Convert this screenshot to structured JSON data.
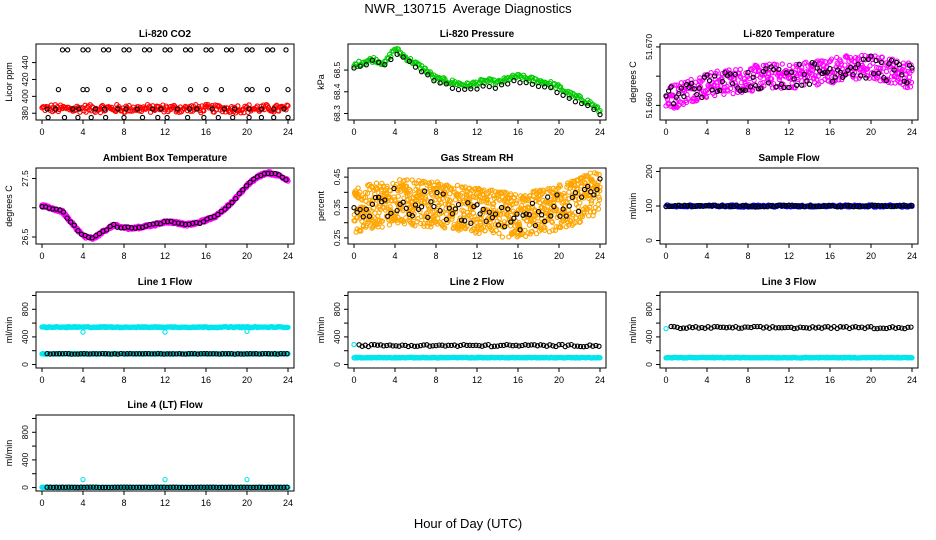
{
  "title": "NWR_130715  Average Diagnostics",
  "xlabel": "Hour of Day (UTC)",
  "x_ticks": [
    0,
    4,
    8,
    12,
    16,
    20,
    24
  ],
  "chart_data": [
    {
      "type": "scatter",
      "title": "Li-820 CO2",
      "ylabel": "Licor ppm",
      "xlim": [
        0,
        24
      ],
      "ylim": [
        372,
        462
      ],
      "yticks": [
        380,
        400,
        420,
        440
      ],
      "series": [
        {
          "color": "#ff0000",
          "points": "band",
          "x": [
            0,
            24
          ],
          "y": [
            381,
            390
          ],
          "step": 0.1,
          "jitter": 2
        },
        {
          "color": "#000000",
          "points": "list",
          "x": [
            2,
            2.5,
            4,
            4.5,
            6,
            6.5,
            8,
            8.5,
            10,
            10.5,
            12,
            12.5,
            14,
            14.5,
            16,
            16.5,
            18,
            18.5,
            20,
            20.5,
            22,
            22.5,
            23.8
          ],
          "y": [
            455,
            455,
            455,
            455,
            455,
            455,
            455,
            455,
            455,
            455,
            455,
            455,
            455,
            455,
            455,
            455,
            455,
            455,
            455,
            455,
            455,
            455,
            455
          ]
        },
        {
          "color": "#000000",
          "points": "list",
          "x": [
            1.6,
            4,
            4.4,
            6.5,
            8,
            9.5,
            10.5,
            12,
            14.5,
            16,
            17.5,
            20,
            20.5,
            22,
            24
          ],
          "y": [
            408,
            408,
            408,
            408,
            408,
            408,
            408,
            408,
            408,
            408,
            408,
            408,
            408,
            408,
            408
          ]
        },
        {
          "color": "#000000",
          "points": "list",
          "x": [
            0.5,
            1.3,
            3,
            3.6,
            5.2,
            6.1,
            7.4,
            8.2,
            9.3,
            10.8,
            11.6,
            13.2,
            14.4,
            15.1,
            16.6,
            17.8,
            18.8,
            20.2,
            21.4,
            22.6,
            23.6
          ],
          "y": [
            385,
            385,
            385,
            385,
            385,
            385,
            385,
            385,
            385,
            385,
            385,
            385,
            385,
            385,
            385,
            385,
            385,
            385,
            385,
            385,
            385
          ]
        },
        {
          "color": "#000000",
          "points": "list",
          "x": [
            0.6,
            2.2,
            3.5,
            4.8,
            6.2,
            8,
            9.8,
            11.3,
            12.2,
            14.2,
            15.8,
            17.2,
            18.6,
            20.2,
            21.4,
            22.6,
            24
          ],
          "y": [
            375,
            375,
            375,
            375,
            375,
            375,
            375,
            375,
            375,
            375,
            375,
            375,
            375,
            375,
            375,
            375,
            375
          ]
        }
      ]
    },
    {
      "type": "scatter",
      "title": "Li-820 Pressure",
      "ylabel": "kPa",
      "xlim": [
        0,
        24
      ],
      "ylim": [
        68.27,
        68.62
      ],
      "yticks": [
        68.3,
        68.4,
        68.5
      ],
      "series": [
        {
          "color": "#00cc00",
          "points": "curve",
          "step": 0.12,
          "jitter": 0.012,
          "x": [
            0,
            1,
            2,
            3,
            4,
            5,
            6,
            7,
            8,
            9,
            10,
            11,
            12,
            13,
            14,
            15,
            16,
            17,
            18,
            19,
            20,
            21,
            22,
            23,
            24
          ],
          "y": [
            68.52,
            68.54,
            68.55,
            68.53,
            68.6,
            68.56,
            68.53,
            68.5,
            68.46,
            68.45,
            68.44,
            68.43,
            68.44,
            68.45,
            68.44,
            68.46,
            68.47,
            68.46,
            68.45,
            68.44,
            68.42,
            68.39,
            68.37,
            68.35,
            68.31
          ]
        },
        {
          "color": "#000000",
          "points": "curve",
          "step": 0.6,
          "jitter": 0.008,
          "x": [
            0,
            1,
            2,
            3,
            4,
            5,
            6,
            7,
            8,
            9,
            10,
            11,
            12,
            13,
            14,
            15,
            16,
            17,
            18,
            19,
            20,
            21,
            22,
            23,
            24
          ],
          "y": [
            68.51,
            68.53,
            68.54,
            68.52,
            68.57,
            68.55,
            68.51,
            68.48,
            68.44,
            68.43,
            68.42,
            68.41,
            68.42,
            68.43,
            68.42,
            68.44,
            68.45,
            68.44,
            68.43,
            68.42,
            68.4,
            68.37,
            68.35,
            68.33,
            68.3
          ]
        }
      ]
    },
    {
      "type": "scatter",
      "title": "Li-820 Temperature",
      "ylabel": "degrees C",
      "xlim": [
        0,
        24
      ],
      "ylim": [
        51.6575,
        51.6705
      ],
      "yticks": [
        51.66,
        51.665,
        51.67
      ],
      "ytick_labels": [
        "51.660",
        "",
        "51.670"
      ],
      "series": [
        {
          "color": "#ff00ff",
          "points": "curve",
          "step": 0.05,
          "jitter": 0.0022,
          "x": [
            0,
            2,
            4,
            6,
            8,
            10,
            12,
            14,
            16,
            18,
            20,
            22,
            24
          ],
          "y": [
            51.661,
            51.6625,
            51.6635,
            51.664,
            51.6645,
            51.665,
            51.665,
            51.6655,
            51.666,
            51.6665,
            51.6665,
            51.666,
            51.665
          ]
        },
        {
          "color": "#000000",
          "points": "curve",
          "step": 0.25,
          "jitter": 0.002,
          "x": [
            0,
            2,
            4,
            6,
            8,
            10,
            12,
            14,
            16,
            18,
            20,
            22,
            24
          ],
          "y": [
            51.661,
            51.6625,
            51.6635,
            51.664,
            51.6645,
            51.665,
            51.665,
            51.6655,
            51.666,
            51.6665,
            51.6665,
            51.666,
            51.665
          ]
        }
      ]
    },
    {
      "type": "scatter",
      "title": "Ambient Box Temperature",
      "ylabel": "degrees C",
      "xlim": [
        0,
        24
      ],
      "ylim": [
        26.38,
        27.68
      ],
      "yticks": [
        26.5,
        27.0,
        27.5
      ],
      "ytick_labels": [
        "26.5",
        "",
        "27.5"
      ],
      "series": [
        {
          "color": "#ff00ff",
          "points": "curve",
          "step": 0.05,
          "jitter": 0.025,
          "x": [
            0,
            1,
            2,
            3,
            4,
            5,
            6,
            7,
            8,
            9,
            10,
            11,
            12,
            13,
            14,
            15,
            16,
            17,
            18,
            19,
            20,
            21,
            22,
            23,
            24
          ],
          "y": [
            27.03,
            26.99,
            26.93,
            26.72,
            26.52,
            26.47,
            26.6,
            26.7,
            26.66,
            26.65,
            26.68,
            26.71,
            26.76,
            26.75,
            26.71,
            26.73,
            26.79,
            26.86,
            27.01,
            27.18,
            27.38,
            27.53,
            27.6,
            27.56,
            27.48
          ]
        },
        {
          "color": "#000000",
          "points": "curve",
          "step": 0.35,
          "jitter": 0.02,
          "x": [
            0,
            1,
            2,
            3,
            4,
            5,
            6,
            7,
            8,
            9,
            10,
            11,
            12,
            13,
            14,
            15,
            16,
            17,
            18,
            19,
            20,
            21,
            22,
            23,
            24
          ],
          "y": [
            27.03,
            26.99,
            26.93,
            26.72,
            26.52,
            26.47,
            26.6,
            26.7,
            26.66,
            26.65,
            26.68,
            26.71,
            26.76,
            26.75,
            26.71,
            26.73,
            26.79,
            26.86,
            27.01,
            27.18,
            27.38,
            27.53,
            27.6,
            27.56,
            27.48
          ]
        }
      ]
    },
    {
      "type": "scatter",
      "title": "Gas Stream RH",
      "ylabel": "percent",
      "xlim": [
        0,
        24
      ],
      "ylim": [
        0.23,
        0.48
      ],
      "yticks": [
        0.25,
        0.3,
        0.35,
        0.4,
        0.45
      ],
      "ytick_labels": [
        "0.25",
        "",
        "0.35",
        "",
        "0.45"
      ],
      "series": [
        {
          "color": "#ffa500",
          "points": "curve",
          "step": 0.025,
          "jitter": 0.075,
          "x": [
            0,
            4,
            8,
            12,
            16,
            20,
            24
          ],
          "y": [
            0.34,
            0.37,
            0.36,
            0.34,
            0.32,
            0.35,
            0.4
          ]
        },
        {
          "color": "#000000",
          "points": "curve",
          "step": 0.3,
          "jitter": 0.045,
          "x": [
            0,
            4,
            8,
            12,
            16,
            20,
            24
          ],
          "y": [
            0.34,
            0.37,
            0.36,
            0.34,
            0.32,
            0.35,
            0.4
          ]
        }
      ]
    },
    {
      "type": "scatter",
      "title": "Sample Flow",
      "ylabel": "ml/min",
      "xlim": [
        0,
        24
      ],
      "ylim": [
        -10,
        210
      ],
      "yticks": [
        0,
        100,
        200
      ],
      "series": [
        {
          "color": "#0000cd",
          "points": "band",
          "x": [
            0,
            24
          ],
          "y": [
            97,
            103
          ],
          "step": 0.1,
          "jitter": 1
        },
        {
          "color": "#000000",
          "points": "band",
          "x": [
            0,
            24
          ],
          "y": [
            98,
            102
          ],
          "step": 0.3,
          "jitter": 1
        }
      ]
    },
    {
      "type": "scatter",
      "title": "Line 1 Flow",
      "ylabel": "ml/min",
      "xlim": [
        0,
        24
      ],
      "ylim": [
        -50,
        1050
      ],
      "yticks": [
        0,
        200,
        400,
        600,
        800,
        1000
      ],
      "ytick_labels": [
        "0",
        "400",
        "800"
      ],
      "series": [
        {
          "color": "#00e5ee",
          "points": "band",
          "x": [
            0,
            24
          ],
          "y": [
            535,
            548
          ],
          "step": 0.1,
          "jitter": 5
        },
        {
          "color": "#00e5ee",
          "points": "band",
          "x": [
            0,
            24
          ],
          "y": [
            150,
            160
          ],
          "step": 0.1,
          "jitter": 3
        },
        {
          "color": "#000000",
          "points": "band",
          "x": [
            0.5,
            24
          ],
          "y": [
            152,
            158
          ],
          "step": 0.3,
          "jitter": 2
        },
        {
          "color": "#00e5ee",
          "points": "list",
          "x": [
            4,
            12,
            20
          ],
          "y": [
            470,
            470,
            480
          ]
        }
      ]
    },
    {
      "type": "scatter",
      "title": "Line 2 Flow",
      "ylabel": "ml/min",
      "xlim": [
        0,
        24
      ],
      "ylim": [
        -50,
        1050
      ],
      "yticks": [
        0,
        200,
        400,
        600,
        800,
        1000
      ],
      "ytick_labels": [
        "0",
        "400",
        "800"
      ],
      "series": [
        {
          "color": "#00e5ee",
          "points": "band",
          "x": [
            0,
            24
          ],
          "y": [
            95,
            105
          ],
          "step": 0.1,
          "jitter": 3
        },
        {
          "color": "#000000",
          "points": "band",
          "x": [
            0.5,
            24
          ],
          "y": [
            260,
            290
          ],
          "step": 0.3,
          "jitter": 3
        },
        {
          "color": "#00e5ee",
          "points": "list",
          "x": [
            0
          ],
          "y": [
            290
          ]
        }
      ]
    },
    {
      "type": "scatter",
      "title": "Line 3 Flow",
      "ylabel": "ml/min",
      "xlim": [
        0,
        24
      ],
      "ylim": [
        -50,
        1050
      ],
      "yticks": [
        0,
        200,
        400,
        600,
        800,
        1000
      ],
      "ytick_labels": [
        "0",
        "400",
        "800"
      ],
      "series": [
        {
          "color": "#00e5ee",
          "points": "band",
          "x": [
            0,
            24
          ],
          "y": [
            95,
            105
          ],
          "step": 0.1,
          "jitter": 3
        },
        {
          "color": "#000000",
          "points": "band",
          "x": [
            0.5,
            24
          ],
          "y": [
            520,
            550
          ],
          "step": 0.3,
          "jitter": 4
        },
        {
          "color": "#00e5ee",
          "points": "list",
          "x": [
            0
          ],
          "y": [
            520
          ]
        }
      ]
    },
    {
      "type": "scatter",
      "title": "Line 4 (LT) Flow",
      "ylabel": "ml/min",
      "xlim": [
        0,
        24
      ],
      "ylim": [
        -50,
        1050
      ],
      "yticks": [
        0,
        200,
        400,
        600,
        800,
        1000
      ],
      "ytick_labels": [
        "0",
        "400",
        "800"
      ],
      "series": [
        {
          "color": "#00e5ee",
          "points": "band",
          "x": [
            0,
            24
          ],
          "y": [
            0,
            8
          ],
          "step": 0.1,
          "jitter": 2
        },
        {
          "color": "#000000",
          "points": "band",
          "x": [
            0.5,
            24
          ],
          "y": [
            2,
            6
          ],
          "step": 0.3,
          "jitter": 1
        },
        {
          "color": "#00e5ee",
          "points": "list",
          "x": [
            4,
            12,
            20
          ],
          "y": [
            115,
            115,
            115
          ]
        }
      ]
    }
  ]
}
